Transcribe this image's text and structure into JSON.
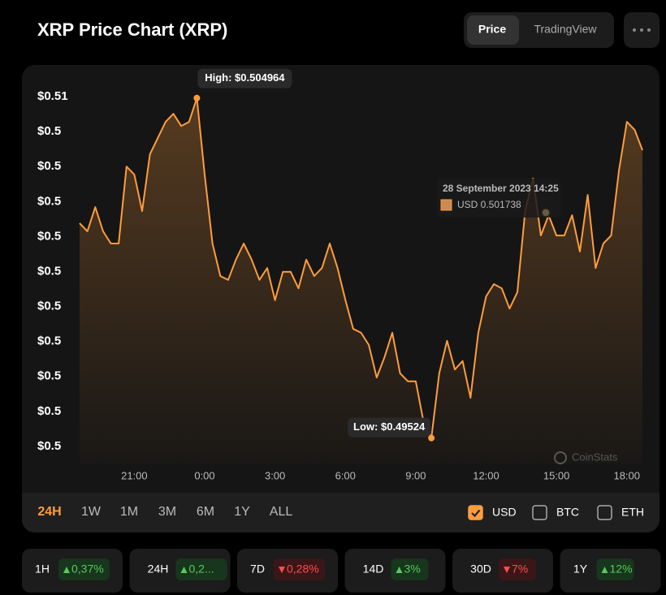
{
  "header": {
    "title": "XRP Price Chart (XRP)",
    "tabs": [
      {
        "label": "Price",
        "active": true
      },
      {
        "label": "TradingView",
        "active": false
      }
    ]
  },
  "chart_data": {
    "type": "line",
    "categories": [
      null,
      null,
      null,
      null,
      null,
      null,
      null,
      "21:00",
      null,
      null,
      null,
      null,
      null,
      null,
      null,
      null,
      "0:00",
      null,
      null,
      null,
      null,
      null,
      null,
      null,
      null,
      "3:00",
      null,
      null,
      null,
      null,
      null,
      null,
      null,
      null,
      "6:00",
      null,
      null,
      null,
      null,
      null,
      null,
      null,
      null,
      "9:00",
      null,
      null,
      null,
      null,
      null,
      null,
      null,
      null,
      "12:00",
      null,
      null,
      null,
      null,
      null,
      null,
      null,
      null,
      "15:00",
      null,
      null,
      null,
      null,
      null,
      null,
      null,
      null,
      "18:00",
      null,
      null
    ],
    "series": [
      {
        "name": "USD",
        "color": "#ff9d3d",
        "values": [
          0.50138,
          0.50115,
          0.50184,
          0.50115,
          0.5008,
          0.5008,
          0.503,
          0.50277,
          0.50173,
          0.50335,
          0.50382,
          0.50428,
          0.50451,
          0.50416,
          0.50428,
          0.50496,
          0.50277,
          0.5008,
          0.49987,
          0.49976,
          0.50034,
          0.5008,
          0.50034,
          0.49976,
          0.5001,
          0.49918,
          0.49999,
          0.49999,
          0.49952,
          0.50034,
          0.49987,
          0.5001,
          0.5008,
          0.5001,
          0.49918,
          0.49836,
          0.49825,
          0.4979,
          0.49697,
          0.49755,
          0.49825,
          0.49709,
          0.49686,
          0.49686,
          0.4957,
          0.49524,
          0.49709,
          0.49802,
          0.4972,
          0.49744,
          0.49639,
          0.49825,
          0.49929,
          0.49964,
          0.49952,
          0.49894,
          0.49941,
          0.50173,
          0.50266,
          0.50103,
          0.50161,
          0.50103,
          0.50103,
          0.50161,
          0.50057,
          0.50219,
          0.5001,
          0.5008,
          0.50103,
          0.50289,
          0.50428,
          0.50405,
          0.50347
        ]
      }
    ],
    "ylim": [
      0.4945,
      0.5055
    ],
    "yticks": [
      {
        "value": 0.505,
        "label": "$0.51"
      },
      {
        "value": 0.504,
        "label": "$0.5"
      },
      {
        "value": 0.503,
        "label": "$0.5"
      },
      {
        "value": 0.502,
        "label": "$0.5"
      },
      {
        "value": 0.501,
        "label": "$0.5"
      },
      {
        "value": 0.5,
        "label": "$0.5"
      },
      {
        "value": 0.499,
        "label": "$0.5"
      },
      {
        "value": 0.498,
        "label": "$0.5"
      },
      {
        "value": 0.497,
        "label": "$0.5"
      },
      {
        "value": 0.496,
        "label": "$0.5"
      },
      {
        "value": 0.495,
        "label": "$0.5"
      }
    ],
    "grid": false,
    "high_label": "High: $0.504964",
    "low_label": "Low: $0.49524",
    "tooltip": {
      "title": "28 September 2023 14:25",
      "text": "USD 0.501738"
    },
    "watermark": "CoinStats"
  },
  "range_buttons": [
    {
      "label": "24H",
      "active": true
    },
    {
      "label": "1W",
      "active": false
    },
    {
      "label": "1M",
      "active": false
    },
    {
      "label": "3M",
      "active": false
    },
    {
      "label": "6M",
      "active": false
    },
    {
      "label": "1Y",
      "active": false
    },
    {
      "label": "ALL",
      "active": false
    }
  ],
  "currency_options": [
    {
      "label": "USD",
      "checked": true
    },
    {
      "label": "BTC",
      "checked": false
    },
    {
      "label": "ETH",
      "checked": false
    }
  ],
  "stats": [
    {
      "period": "1H",
      "change": "0,37%",
      "direction": "up"
    },
    {
      "period": "24H",
      "change": "0,2...",
      "direction": "up"
    },
    {
      "period": "7D",
      "change": "0,28%",
      "direction": "down"
    },
    {
      "period": "14D",
      "change": "3%",
      "direction": "up"
    },
    {
      "period": "30D",
      "change": "7%",
      "direction": "down"
    },
    {
      "period": "1Y",
      "change": "12%",
      "direction": "up"
    }
  ]
}
